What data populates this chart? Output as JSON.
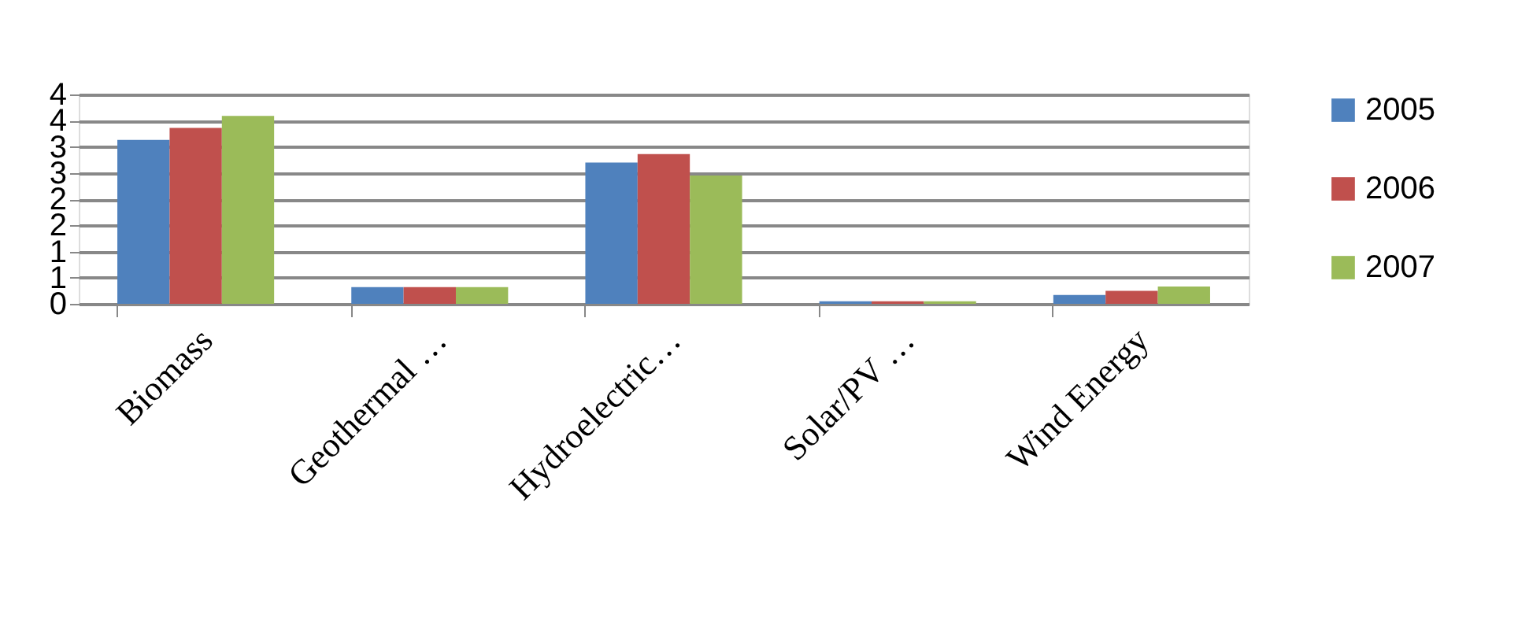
{
  "chart_data": {
    "type": "bar",
    "categories": [
      "Biomass",
      "Geothermal …",
      "Hydroelectric…",
      "Solar/PV …",
      "Wind Energy"
    ],
    "series": [
      {
        "name": "2005",
        "color": "#4f81bd",
        "values": [
          3.13,
          0.32,
          2.7,
          0.05,
          0.17
        ]
      },
      {
        "name": "2006",
        "color": "#c0504d",
        "values": [
          3.36,
          0.32,
          2.86,
          0.05,
          0.25
        ]
      },
      {
        "name": "2007",
        "color": "#9bbb59",
        "values": [
          3.59,
          0.32,
          2.45,
          0.05,
          0.33
        ]
      }
    ],
    "ylim": [
      0,
      4
    ],
    "yticks": [
      0,
      {
        "value": 0.5,
        "label": "1"
      },
      1,
      {
        "value": 1.5,
        "label": "2"
      },
      2,
      {
        "value": 2.5,
        "label": "3"
      },
      3,
      {
        "value": 3.5,
        "label": "4"
      },
      4
    ],
    "grid": "y",
    "legend": "right"
  }
}
